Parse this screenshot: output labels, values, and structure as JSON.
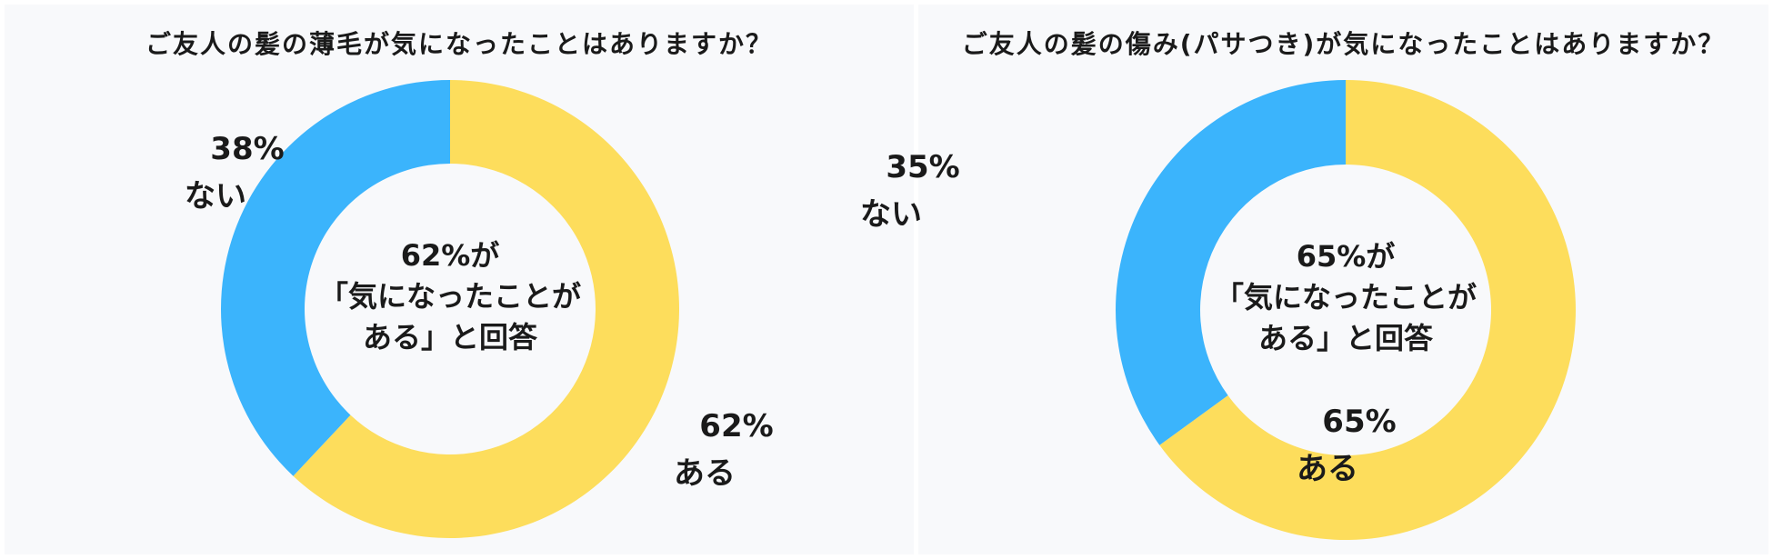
{
  "colors": {
    "yes": "#fddd5c",
    "no": "#3bb4fc",
    "panel_bg": "#f8f9fb"
  },
  "chart_data": [
    {
      "type": "pie",
      "title": "ご友人の髪の薄毛が気になったことはありますか？",
      "donut": true,
      "slices": [
        {
          "label": "ある",
          "value": 62,
          "percent_label": "62%"
        },
        {
          "label": "ない",
          "value": 38,
          "percent_label": "38%"
        }
      ],
      "center_text": [
        "62%が",
        "「気になったことが",
        "ある」と回答"
      ]
    },
    {
      "type": "pie",
      "title": "ご友人の髪の傷み(パサつき)が気になったことはありますか？",
      "donut": true,
      "slices": [
        {
          "label": "ある",
          "value": 65,
          "percent_label": "65%"
        },
        {
          "label": "ない",
          "value": 35,
          "percent_label": "35%"
        }
      ],
      "center_text": [
        "65%が",
        "「気になったことが",
        "ある」と回答"
      ]
    }
  ]
}
